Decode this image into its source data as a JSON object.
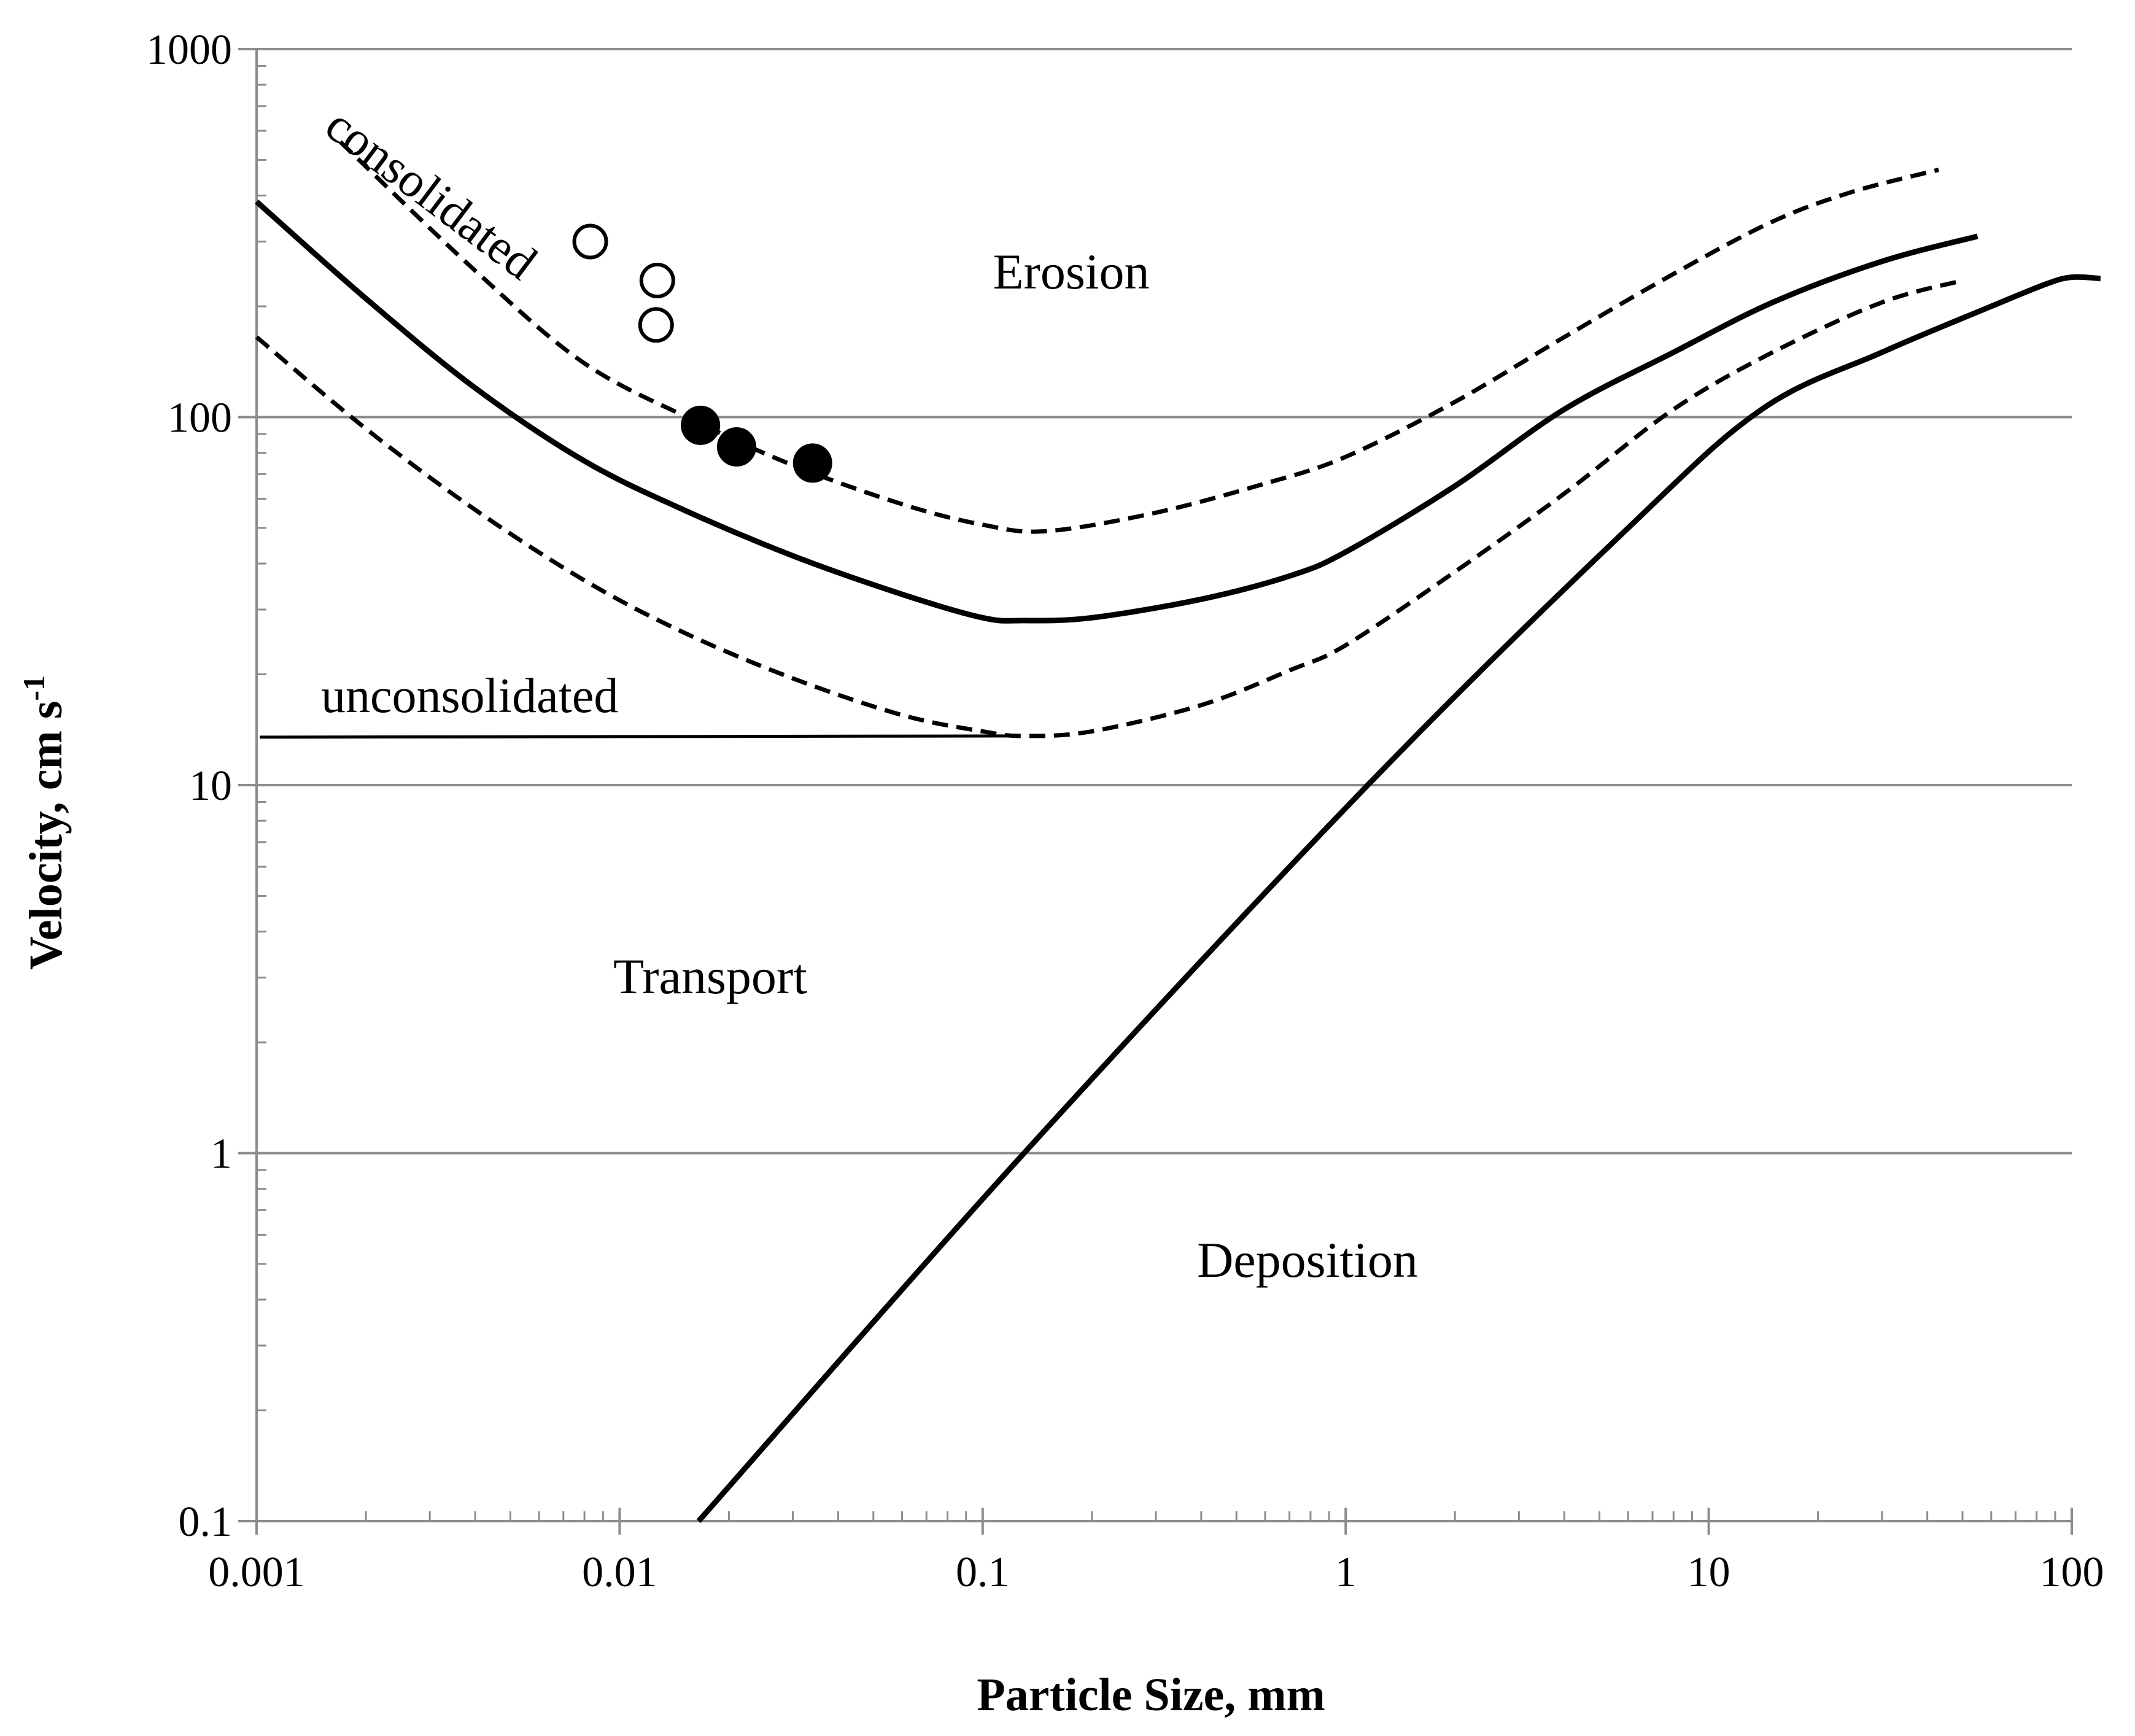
{
  "chart_data": {
    "type": "line",
    "title": "",
    "xlabel": "Particle Size, mm",
    "ylabel": {
      "main": "Velocity, cm s",
      "superscript": "-1"
    },
    "xscale": "log",
    "yscale": "log",
    "xlim": [
      0.001,
      100
    ],
    "ylim": [
      0.1,
      1000
    ],
    "x_tick_labels": [
      "0.001",
      "0.01",
      "0.1",
      "1",
      "10",
      "100"
    ],
    "x_ticks": [
      0.001,
      0.01,
      0.1,
      1,
      10,
      100
    ],
    "y_tick_labels": [
      "0.1",
      "1",
      "10",
      "100",
      "1000"
    ],
    "y_ticks": [
      0.1,
      1,
      10,
      100,
      1000
    ],
    "grid": "horizontal at major y ticks",
    "legend": "none",
    "series": [
      {
        "name": "erosion-mean",
        "style": "solid",
        "points": [
          [
            0.001,
            385
          ],
          [
            0.002,
            210
          ],
          [
            0.004,
            120
          ],
          [
            0.008,
            76
          ],
          [
            0.015,
            56
          ],
          [
            0.03,
            42
          ],
          [
            0.06,
            33
          ],
          [
            0.1,
            28.5
          ],
          [
            0.13,
            28
          ],
          [
            0.2,
            28.5
          ],
          [
            0.4,
            32
          ],
          [
            0.7,
            37
          ],
          [
            1,
            43
          ],
          [
            2,
            65
          ],
          [
            4,
            105
          ],
          [
            8,
            150
          ],
          [
            15,
            205
          ],
          [
            30,
            265
          ],
          [
            55,
            310
          ]
        ]
      },
      {
        "name": "consolidated",
        "style": "dashed",
        "points": [
          [
            0.0017,
            560
          ],
          [
            0.004,
            250
          ],
          [
            0.008,
            140
          ],
          [
            0.016,
            98
          ],
          [
            0.03,
            74
          ],
          [
            0.06,
            58
          ],
          [
            0.1,
            51
          ],
          [
            0.15,
            49
          ],
          [
            0.3,
            55
          ],
          [
            0.6,
            66
          ],
          [
            1,
            78
          ],
          [
            2,
            110
          ],
          [
            4,
            165
          ],
          [
            8,
            245
          ],
          [
            15,
            340
          ],
          [
            25,
            410
          ],
          [
            43,
            470
          ]
        ]
      },
      {
        "name": "unconsolidated",
        "style": "dashed",
        "points": [
          [
            0.001,
            165
          ],
          [
            0.002,
            93
          ],
          [
            0.004,
            56
          ],
          [
            0.008,
            36
          ],
          [
            0.015,
            26
          ],
          [
            0.03,
            19.5
          ],
          [
            0.06,
            15.5
          ],
          [
            0.1,
            14
          ],
          [
            0.13,
            13.6
          ],
          [
            0.2,
            14
          ],
          [
            0.4,
            16.5
          ],
          [
            0.7,
            20.5
          ],
          [
            1,
            24
          ],
          [
            2,
            38
          ],
          [
            4,
            62
          ],
          [
            8,
            105
          ],
          [
            15,
            150
          ],
          [
            30,
            205
          ],
          [
            50,
            235
          ]
        ]
      },
      {
        "name": "unconsolidated-flat",
        "style": "solid-thin",
        "points": [
          [
            0.00102,
            13.5
          ],
          [
            0.12,
            13.6
          ]
        ]
      },
      {
        "name": "deposition",
        "style": "solid",
        "points": [
          [
            0.0165,
            0.1
          ],
          [
            0.13,
            1
          ],
          [
            1.15,
            10
          ],
          [
            6,
            50
          ],
          [
            14,
            105
          ],
          [
            30,
            150
          ],
          [
            60,
            200
          ],
          [
            85,
            230
          ],
          [
            100,
            240
          ],
          [
            120,
            238
          ]
        ]
      }
    ],
    "markers": [
      {
        "name": "open-circles",
        "filled": false,
        "points": [
          [
            0.0083,
            300
          ],
          [
            0.0127,
            235
          ],
          [
            0.0126,
            178
          ]
        ]
      },
      {
        "name": "filled-circles",
        "filled": true,
        "points": [
          [
            0.0167,
            95
          ],
          [
            0.021,
            83
          ],
          [
            0.034,
            75
          ]
        ]
      }
    ],
    "annotations": {
      "erosion": "Erosion",
      "transport": "Transport",
      "deposition": "Deposition",
      "consolidated": "consolidated",
      "unconsolidated": "unconsolidated"
    }
  }
}
